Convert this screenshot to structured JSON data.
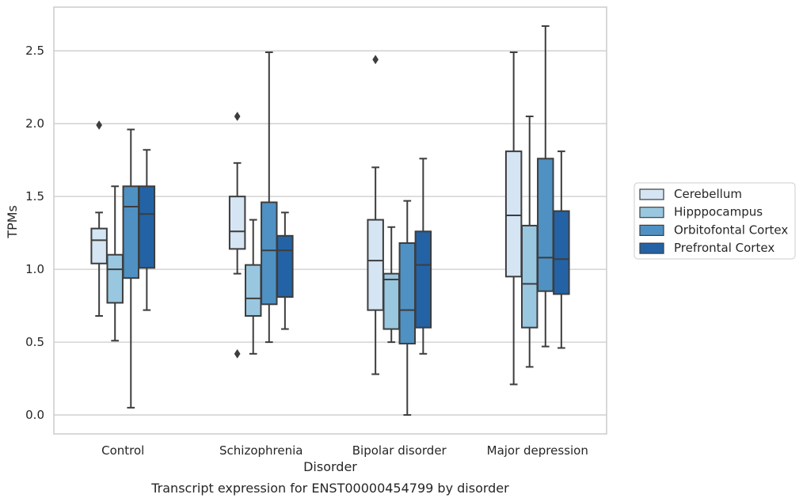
{
  "chart_data": {
    "type": "box",
    "xlabel": "Disorder",
    "ylabel": "TPMs",
    "caption": "Transcript expression for ENST00000454799 by disorder",
    "ylim": [
      -0.13,
      2.8
    ],
    "yticks": [
      "0.0",
      "0.5",
      "1.0",
      "1.5",
      "2.0",
      "2.5"
    ],
    "grid": "horizontal",
    "legend_position": "right",
    "categories": [
      "Control",
      "Schizophrenia",
      "Bipolar disorder",
      "Major depression"
    ],
    "series": [
      {
        "name": "Cerebellum",
        "color": "#d5e5f4",
        "boxes": [
          {
            "whislo": 0.68,
            "q1": 1.04,
            "med": 1.2,
            "q3": 1.28,
            "whishi": 1.39,
            "fliers": [
              1.99
            ]
          },
          {
            "whislo": 0.97,
            "q1": 1.14,
            "med": 1.26,
            "q3": 1.5,
            "whishi": 1.73,
            "fliers": [
              2.05,
              0.42
            ]
          },
          {
            "whislo": 0.28,
            "q1": 0.72,
            "med": 1.06,
            "q3": 1.34,
            "whishi": 1.7,
            "fliers": [
              2.44
            ]
          },
          {
            "whislo": 0.21,
            "q1": 0.95,
            "med": 1.37,
            "q3": 1.81,
            "whishi": 2.49,
            "fliers": []
          }
        ]
      },
      {
        "name": "Hipppocampus",
        "color": "#9ac7e0",
        "boxes": [
          {
            "whislo": 0.51,
            "q1": 0.77,
            "med": 1.0,
            "q3": 1.1,
            "whishi": 1.57,
            "fliers": []
          },
          {
            "whislo": 0.42,
            "q1": 0.68,
            "med": 0.8,
            "q3": 1.03,
            "whishi": 1.34,
            "fliers": []
          },
          {
            "whislo": 0.5,
            "q1": 0.59,
            "med": 0.93,
            "q3": 0.97,
            "whishi": 1.29,
            "fliers": []
          },
          {
            "whislo": 0.33,
            "q1": 0.6,
            "med": 0.9,
            "q3": 1.3,
            "whishi": 2.05,
            "fliers": []
          }
        ]
      },
      {
        "name": "Orbitofontal Cortex",
        "color": "#4f91c3",
        "boxes": [
          {
            "whislo": 0.05,
            "q1": 0.94,
            "med": 1.43,
            "q3": 1.57,
            "whishi": 1.96,
            "fliers": []
          },
          {
            "whislo": 0.5,
            "q1": 0.76,
            "med": 1.13,
            "q3": 1.46,
            "whishi": 2.49,
            "fliers": []
          },
          {
            "whislo": 0.0,
            "q1": 0.49,
            "med": 0.72,
            "q3": 1.18,
            "whishi": 1.47,
            "fliers": []
          },
          {
            "whislo": 0.47,
            "q1": 0.85,
            "med": 1.08,
            "q3": 1.76,
            "whishi": 2.67,
            "fliers": []
          }
        ]
      },
      {
        "name": "Prefrontal Cortex",
        "color": "#2363a5",
        "boxes": [
          {
            "whislo": 0.72,
            "q1": 1.01,
            "med": 1.38,
            "q3": 1.57,
            "whishi": 1.82,
            "fliers": []
          },
          {
            "whislo": 0.59,
            "q1": 0.81,
            "med": 1.13,
            "q3": 1.23,
            "whishi": 1.39,
            "fliers": []
          },
          {
            "whislo": 0.42,
            "q1": 0.6,
            "med": 1.03,
            "q3": 1.26,
            "whishi": 1.76,
            "fliers": []
          },
          {
            "whislo": 0.46,
            "q1": 0.83,
            "med": 1.07,
            "q3": 1.4,
            "whishi": 1.81,
            "fliers": []
          }
        ]
      }
    ]
  }
}
